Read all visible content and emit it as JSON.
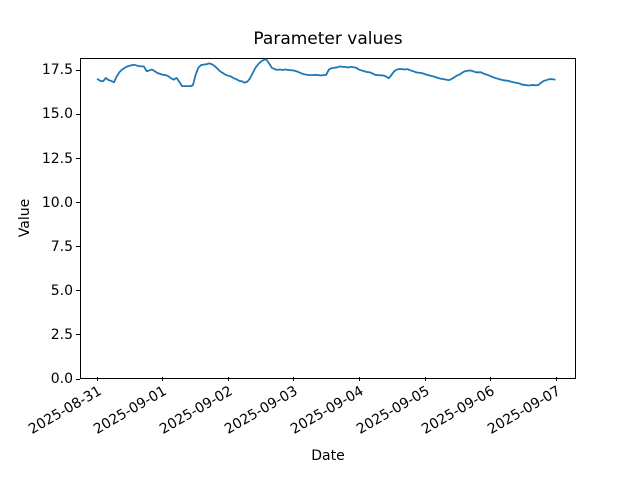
{
  "chart_data": {
    "type": "line",
    "title": "Parameter values",
    "xlabel": "Date",
    "ylabel": "Value",
    "line_color": "#1f77b4",
    "grid": false,
    "legend": null,
    "ylim": [
      0,
      18.2
    ],
    "y_ticks": [
      0.0,
      2.5,
      5.0,
      7.5,
      10.0,
      12.5,
      15.0,
      17.5
    ],
    "y_tick_labels": [
      "0.0",
      "2.5",
      "5.0",
      "7.5",
      "10.0",
      "12.5",
      "15.0",
      "17.5"
    ],
    "x_tick_labels": [
      "2025-08-31",
      "2025-09-01",
      "2025-09-02",
      "2025-09-03",
      "2025-09-04",
      "2025-09-05",
      "2025-09-06",
      "2025-09-07"
    ],
    "x_start": "2025-08-31",
    "x_end": "2025-09-07",
    "x_interval_hours": 1,
    "values": [
      17.05,
      16.95,
      16.93,
      17.12,
      17.0,
      16.95,
      16.87,
      17.2,
      17.45,
      17.6,
      17.7,
      17.78,
      17.82,
      17.87,
      17.85,
      17.8,
      17.78,
      17.78,
      17.5,
      17.55,
      17.6,
      17.5,
      17.4,
      17.35,
      17.3,
      17.28,
      17.22,
      17.1,
      17.02,
      17.12,
      16.9,
      16.65,
      16.65,
      16.65,
      16.65,
      16.7,
      17.3,
      17.7,
      17.85,
      17.88,
      17.9,
      17.95,
      17.9,
      17.8,
      17.65,
      17.5,
      17.4,
      17.3,
      17.25,
      17.2,
      17.1,
      17.05,
      16.95,
      16.93,
      16.85,
      16.9,
      17.1,
      17.4,
      17.7,
      17.9,
      18.05,
      18.15,
      18.18,
      17.95,
      17.7,
      17.62,
      17.58,
      17.6,
      17.57,
      17.6,
      17.58,
      17.56,
      17.55,
      17.5,
      17.44,
      17.38,
      17.32,
      17.3,
      17.28,
      17.28,
      17.3,
      17.28,
      17.26,
      17.28,
      17.3,
      17.6,
      17.68,
      17.7,
      17.72,
      17.78,
      17.75,
      17.75,
      17.72,
      17.75,
      17.73,
      17.7,
      17.6,
      17.55,
      17.5,
      17.46,
      17.44,
      17.38,
      17.3,
      17.28,
      17.27,
      17.26,
      17.2,
      17.1,
      17.3,
      17.5,
      17.6,
      17.63,
      17.62,
      17.6,
      17.62,
      17.55,
      17.5,
      17.44,
      17.42,
      17.4,
      17.35,
      17.3,
      17.26,
      17.22,
      17.18,
      17.12,
      17.08,
      17.06,
      17.02,
      16.99,
      17.05,
      17.15,
      17.25,
      17.31,
      17.42,
      17.5,
      17.53,
      17.55,
      17.5,
      17.44,
      17.44,
      17.44,
      17.35,
      17.31,
      17.25,
      17.18,
      17.12,
      17.08,
      17.03,
      17.0,
      16.97,
      16.95,
      16.9,
      16.87,
      16.84,
      16.8,
      16.74,
      16.72,
      16.7,
      16.7,
      16.72,
      16.7,
      16.72,
      16.85,
      16.95,
      17.0,
      17.05,
      17.05,
      17.02
    ]
  }
}
